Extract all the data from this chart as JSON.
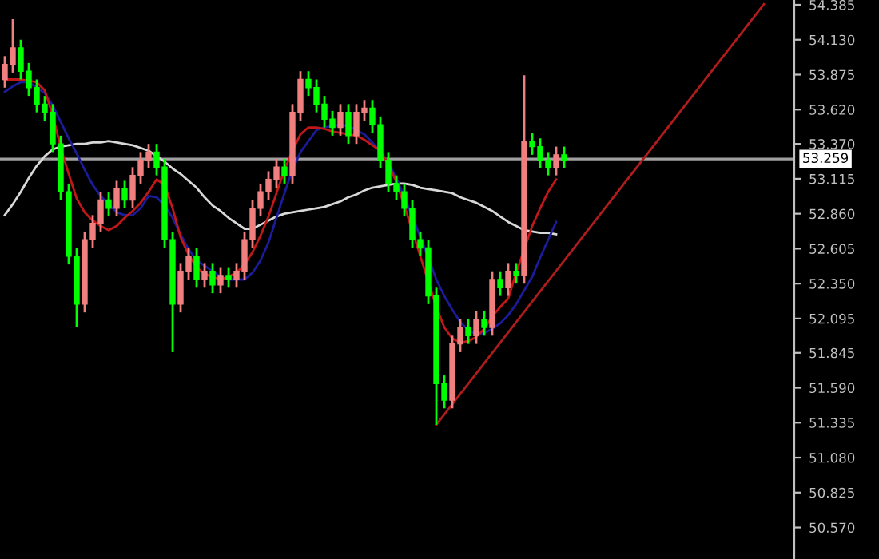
{
  "chart_data": {
    "type": "candlestick",
    "categories": [
      null,
      null,
      null,
      null,
      null,
      null,
      null,
      null,
      null,
      null,
      null,
      null,
      null,
      null,
      null,
      null,
      null,
      null,
      null,
      null,
      null,
      null,
      null,
      null,
      null,
      null,
      null,
      null,
      null,
      null,
      null,
      null,
      null,
      null,
      null,
      null,
      null,
      null,
      null,
      null,
      null,
      null,
      null,
      null,
      null,
      null,
      null,
      null,
      null,
      null,
      null,
      null,
      null,
      null,
      null,
      null,
      null,
      null,
      null,
      null,
      null,
      null,
      null,
      null,
      null,
      null,
      null,
      null,
      null,
      null,
      null,
      null,
      null,
      null,
      null,
      null,
      null,
      null,
      null,
      null,
      null,
      null,
      null,
      null,
      null,
      null,
      null,
      null,
      null,
      null,
      null,
      null,
      null,
      null,
      null,
      null
    ],
    "ohlc": [
      [
        53.84,
        54.01,
        53.78,
        53.95
      ],
      [
        53.95,
        54.28,
        53.89,
        54.07
      ],
      [
        54.07,
        54.13,
        53.84,
        53.9
      ],
      [
        53.9,
        53.96,
        53.72,
        53.78
      ],
      [
        53.78,
        53.84,
        53.6,
        53.66
      ],
      [
        53.66,
        53.72,
        53.54,
        53.6
      ],
      [
        53.6,
        53.66,
        53.31,
        53.37
      ],
      [
        53.37,
        53.43,
        52.96,
        53.02
      ],
      [
        53.02,
        53.08,
        52.49,
        52.55
      ],
      [
        52.55,
        52.61,
        52.03,
        52.2
      ],
      [
        52.2,
        52.73,
        52.14,
        52.67
      ],
      [
        52.67,
        52.85,
        52.61,
        52.79
      ],
      [
        52.79,
        53.02,
        52.73,
        52.96
      ],
      [
        52.96,
        53.02,
        52.84,
        52.9
      ],
      [
        52.9,
        53.1,
        52.84,
        53.04
      ],
      [
        53.04,
        53.1,
        52.9,
        52.96
      ],
      [
        52.96,
        53.2,
        52.9,
        53.14
      ],
      [
        53.14,
        53.31,
        53.08,
        53.25
      ],
      [
        53.25,
        53.37,
        53.19,
        53.31
      ],
      [
        53.31,
        53.37,
        53.14,
        53.2
      ],
      [
        53.2,
        53.26,
        52.61,
        52.67
      ],
      [
        52.67,
        52.73,
        51.85,
        52.2
      ],
      [
        52.2,
        52.5,
        52.14,
        52.44
      ],
      [
        52.44,
        52.61,
        52.38,
        52.55
      ],
      [
        52.55,
        52.61,
        52.32,
        52.38
      ],
      [
        52.38,
        52.5,
        52.32,
        52.44
      ],
      [
        52.44,
        52.5,
        52.28,
        52.34
      ],
      [
        52.34,
        52.47,
        52.28,
        52.41
      ],
      [
        52.41,
        52.47,
        52.32,
        52.38
      ],
      [
        52.38,
        52.5,
        52.32,
        52.44
      ],
      [
        52.44,
        52.73,
        52.38,
        52.67
      ],
      [
        52.67,
        52.96,
        52.61,
        52.9
      ],
      [
        52.9,
        53.08,
        52.84,
        53.02
      ],
      [
        53.02,
        53.17,
        52.96,
        53.11
      ],
      [
        53.11,
        53.26,
        53.05,
        53.2
      ],
      [
        53.2,
        53.26,
        53.08,
        53.14
      ],
      [
        53.14,
        53.66,
        53.08,
        53.6
      ],
      [
        53.6,
        53.9,
        53.54,
        53.84
      ],
      [
        53.84,
        53.9,
        53.72,
        53.78
      ],
      [
        53.78,
        53.84,
        53.6,
        53.66
      ],
      [
        53.66,
        53.72,
        53.49,
        53.55
      ],
      [
        53.55,
        53.61,
        53.43,
        53.49
      ],
      [
        53.49,
        53.66,
        53.43,
        53.6
      ],
      [
        53.6,
        53.66,
        53.37,
        53.43
      ],
      [
        53.43,
        53.66,
        53.37,
        53.6
      ],
      [
        53.6,
        53.69,
        53.54,
        53.63
      ],
      [
        53.63,
        53.69,
        53.45,
        53.51
      ],
      [
        53.51,
        53.57,
        53.19,
        53.25
      ],
      [
        53.25,
        53.31,
        53.02,
        53.08
      ],
      [
        53.08,
        53.14,
        52.96,
        53.02
      ],
      [
        53.02,
        53.08,
        52.84,
        52.9
      ],
      [
        52.9,
        52.96,
        52.61,
        52.67
      ],
      [
        52.67,
        52.73,
        52.55,
        52.61
      ],
      [
        52.61,
        52.67,
        52.2,
        52.26
      ],
      [
        52.26,
        52.32,
        51.32,
        51.62
      ],
      [
        51.62,
        51.68,
        51.44,
        51.5
      ],
      [
        51.5,
        51.97,
        51.44,
        51.91
      ],
      [
        51.91,
        52.09,
        51.85,
        52.03
      ],
      [
        52.03,
        52.09,
        51.91,
        51.97
      ],
      [
        51.97,
        52.15,
        51.91,
        52.09
      ],
      [
        52.09,
        52.15,
        51.97,
        52.03
      ],
      [
        52.03,
        52.44,
        51.97,
        52.38
      ],
      [
        52.38,
        52.44,
        52.26,
        52.32
      ],
      [
        52.32,
        52.5,
        52.26,
        52.44
      ],
      [
        52.44,
        52.5,
        52.35,
        52.41
      ],
      [
        52.41,
        53.87,
        52.35,
        53.39
      ],
      [
        53.39,
        53.45,
        53.29,
        53.35
      ],
      [
        53.35,
        53.41,
        53.19,
        53.25
      ],
      [
        53.25,
        53.31,
        53.14,
        53.2
      ],
      [
        53.2,
        53.35,
        53.14,
        53.29
      ],
      [
        53.29,
        53.35,
        53.19,
        53.25
      ],
      null,
      null,
      null,
      null,
      null,
      null,
      null,
      null,
      null,
      null,
      null,
      null,
      null,
      null,
      null,
      null,
      null,
      null,
      null,
      null,
      null,
      null,
      null,
      null,
      null
    ],
    "colors": [
      "#f08080",
      "#f08080",
      "#00ff00",
      "#00ff00",
      "#00ff00",
      "#00ff00",
      "#00ff00",
      "#00ff00",
      "#00ff00",
      "#00ff00",
      "#f08080",
      "#f08080",
      "#f08080",
      "#00ff00",
      "#f08080",
      "#00ff00",
      "#f08080",
      "#f08080",
      "#f08080",
      "#00ff00",
      "#00ff00",
      "#00ff00",
      "#f08080",
      "#f08080",
      "#00ff00",
      "#f08080",
      "#00ff00",
      "#f08080",
      "#00ff00",
      "#f08080",
      "#f08080",
      "#f08080",
      "#f08080",
      "#f08080",
      "#f08080",
      "#00ff00",
      "#f08080",
      "#f08080",
      "#00ff00",
      "#00ff00",
      "#00ff00",
      "#00ff00",
      "#f08080",
      "#00ff00",
      "#f08080",
      "#f08080",
      "#00ff00",
      "#00ff00",
      "#00ff00",
      "#00ff00",
      "#00ff00",
      "#00ff00",
      "#00ff00",
      "#00ff00",
      "#00ff00",
      "#00ff00",
      "#f08080",
      "#f08080",
      "#00ff00",
      "#f08080",
      "#00ff00",
      "#f08080",
      "#00ff00",
      "#f08080",
      "#00ff00",
      "#f08080",
      "#00ff00",
      "#00ff00",
      "#00ff00",
      "#f08080",
      "#00ff00",
      null,
      null,
      null,
      null,
      null,
      null,
      null,
      null,
      null,
      null,
      null,
      null,
      null,
      null,
      null,
      null,
      null,
      null,
      null,
      null,
      null,
      null,
      null,
      null,
      null
    ],
    "series": [
      {
        "type": "line",
        "color": "#d8d8d8",
        "values": [
          52.85,
          52.93,
          53.02,
          53.12,
          53.21,
          53.28,
          53.33,
          53.35,
          53.36,
          53.37,
          53.37,
          53.38,
          53.38,
          53.39,
          53.38,
          53.37,
          53.36,
          53.34,
          53.32,
          53.28,
          53.24,
          53.19,
          53.15,
          53.1,
          53.05,
          52.98,
          52.92,
          52.88,
          52.83,
          52.79,
          52.75,
          52.75,
          52.78,
          52.81,
          52.84,
          52.86,
          52.87,
          52.88,
          52.89,
          52.9,
          52.91,
          52.93,
          52.95,
          52.98,
          53.0,
          53.03,
          53.05,
          53.06,
          53.07,
          53.08,
          53.08,
          53.07,
          53.05,
          53.04,
          53.03,
          53.02,
          53.01,
          52.98,
          52.96,
          52.94,
          52.91,
          52.88,
          52.84,
          52.8,
          52.77,
          52.74,
          52.73,
          52.72,
          52.72,
          52.71,
          null,
          null,
          null,
          null,
          null,
          null,
          null,
          null,
          null,
          null,
          null,
          null,
          null,
          null,
          null,
          null,
          null,
          null,
          null,
          null,
          null,
          null,
          null,
          null,
          null,
          null
        ]
      },
      {
        "type": "line",
        "color": "#1c1c9a",
        "values": [
          53.75,
          53.79,
          53.82,
          53.82,
          53.78,
          53.74,
          53.65,
          53.53,
          53.41,
          53.3,
          53.18,
          53.07,
          52.99,
          52.93,
          52.87,
          52.85,
          52.85,
          52.9,
          52.99,
          52.98,
          52.92,
          52.83,
          52.71,
          52.6,
          52.52,
          52.48,
          52.44,
          52.4,
          52.38,
          52.38,
          52.38,
          52.43,
          52.52,
          52.65,
          52.83,
          53.01,
          53.18,
          53.31,
          53.39,
          53.47,
          53.49,
          53.5,
          53.51,
          53.5,
          53.47,
          53.44,
          53.38,
          53.31,
          53.23,
          53.12,
          52.98,
          52.84,
          52.69,
          52.54,
          52.38,
          52.26,
          52.16,
          52.07,
          52.01,
          51.98,
          51.99,
          52.02,
          52.06,
          52.12,
          52.2,
          52.3,
          52.4,
          52.54,
          52.67,
          52.8,
          null,
          null,
          null,
          null,
          null,
          null,
          null,
          null,
          null,
          null,
          null,
          null,
          null,
          null,
          null,
          null,
          null,
          null,
          null,
          null,
          null,
          null,
          null,
          null,
          null,
          null
        ]
      },
      {
        "type": "line",
        "color": "#c01818",
        "values": [
          53.84,
          53.84,
          53.84,
          53.83,
          53.82,
          53.76,
          53.58,
          53.34,
          53.15,
          52.97,
          52.87,
          52.81,
          52.77,
          52.74,
          52.77,
          52.83,
          52.88,
          52.94,
          53.02,
          53.11,
          53.07,
          52.9,
          52.69,
          52.56,
          52.47,
          52.42,
          52.4,
          52.38,
          52.4,
          52.43,
          52.49,
          52.58,
          52.7,
          52.84,
          53.01,
          53.18,
          53.32,
          53.44,
          53.49,
          53.49,
          53.48,
          53.46,
          53.45,
          53.44,
          53.43,
          53.4,
          53.36,
          53.32,
          53.22,
          53.09,
          52.92,
          null,
          52.55,
          null,
          52.18,
          52.03,
          51.95,
          51.92,
          51.93,
          51.96,
          52.02,
          52.11,
          52.18,
          52.24,
          52.43,
          null,
          52.77,
          52.9,
          53.02,
          53.11,
          null,
          null,
          null,
          null,
          null,
          null,
          null,
          null,
          null,
          null,
          null,
          null,
          null,
          null,
          null,
          null,
          null,
          null,
          null,
          null,
          null,
          null,
          null,
          null,
          null,
          null
        ]
      },
      {
        "type": "line",
        "color": "#b01c1c",
        "values": [
          null,
          null,
          null,
          null,
          null,
          null,
          null,
          null,
          null,
          null,
          null,
          null,
          null,
          null,
          null,
          null,
          null,
          null,
          null,
          null,
          null,
          null,
          null,
          null,
          null,
          null,
          null,
          null,
          null,
          null,
          null,
          null,
          null,
          null,
          null,
          null,
          null,
          null,
          null,
          null,
          null,
          null,
          null,
          null,
          null,
          null,
          null,
          null,
          null,
          null,
          null,
          null,
          null,
          null,
          51.32,
          null,
          null,
          null,
          null,
          null,
          null,
          null,
          null,
          null,
          null,
          null,
          null,
          null,
          null,
          null,
          null,
          null,
          null,
          null,
          null,
          null,
          null,
          null,
          null,
          null,
          null,
          null,
          null,
          null,
          null,
          null,
          null,
          null,
          null,
          null,
          null,
          null,
          null,
          null,
          null,
          54.39
        ]
      }
    ],
    "ref_lines": [
      {
        "axis": "y",
        "value": 53.259,
        "label": "53.259",
        "color": "#a0a0a0"
      }
    ],
    "ylim": [
      50.34,
      54.42
    ],
    "yticks": [
      54.385,
      {
        "value": 54.13,
        "label": "54.130"
      },
      53.875,
      {
        "value": 53.62,
        "label": "53.620"
      },
      {
        "value": 53.37,
        "label": "53.370"
      },
      53.115,
      {
        "value": 52.86,
        "label": "52.860"
      },
      52.605,
      {
        "value": 52.35,
        "label": "52.350"
      },
      52.095,
      51.845,
      {
        "value": 51.59,
        "label": "51.590"
      },
      51.335,
      {
        "value": 51.08,
        "label": "51.080"
      },
      50.825,
      {
        "value": 50.57,
        "label": "50.570"
      }
    ],
    "tick_labels": "y",
    "grid": false
  }
}
